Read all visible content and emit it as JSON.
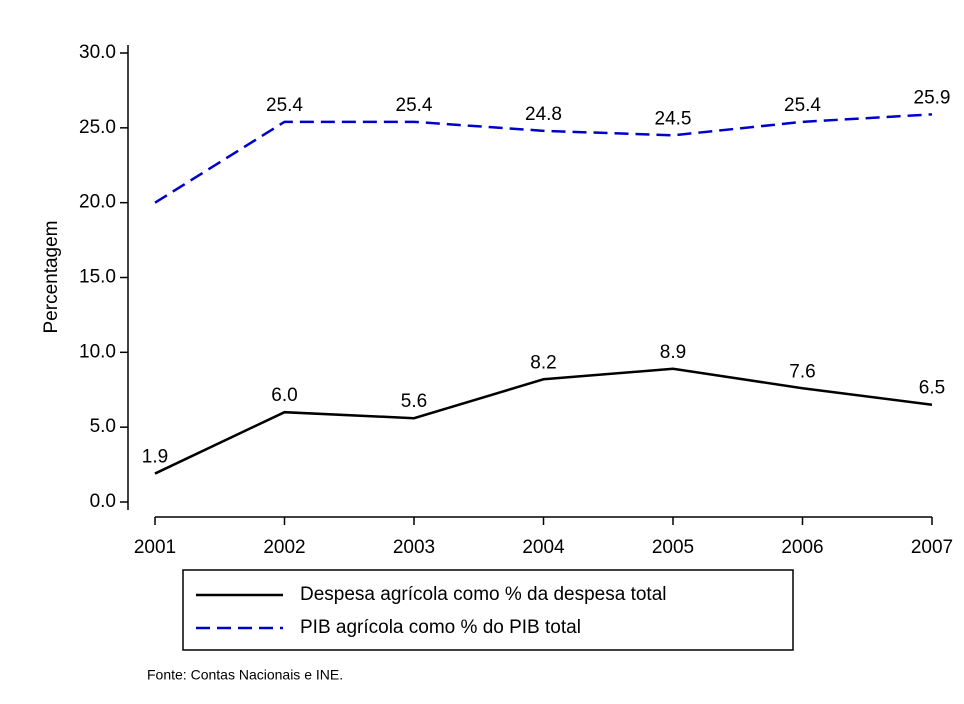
{
  "chart_data": {
    "type": "line",
    "y_label": "Percentagem",
    "note": "Fonte: Contas Nacionais e INE.",
    "x": [
      2001,
      2002,
      2003,
      2004,
      2005,
      2006,
      2007
    ],
    "xlim": [
      2001,
      2007
    ],
    "xticks": [
      2001,
      2002,
      2003,
      2004,
      2005,
      2006,
      2007
    ],
    "ylim": [
      0,
      30
    ],
    "yticks": [
      {
        "value": 0,
        "label": "0.0"
      },
      {
        "value": 5,
        "label": "5.0"
      },
      {
        "value": 10,
        "label": "10.0"
      },
      {
        "value": 15,
        "label": "15.0"
      },
      {
        "value": 20,
        "label": "20.0"
      },
      {
        "value": 25,
        "label": "25.0"
      },
      {
        "value": 30,
        "label": "30.0"
      }
    ],
    "grid": false,
    "legend": "bottom",
    "series": [
      {
        "name": "Despesa agrícola como % da despesa total",
        "color": "#000000",
        "dash": false,
        "values": [
          1.9,
          6,
          5.6,
          8.2,
          8.9,
          7.6,
          6.5
        ],
        "value_labels": [
          "1.9",
          "6.0",
          "5.6",
          "8.2",
          "8.9",
          "7.6",
          "6.5"
        ]
      },
      {
        "name": "PIB agrícola como % do PIB total",
        "color": "#0000cc",
        "dash": true,
        "values": [
          20,
          25.4,
          25.4,
          24.8,
          24.5,
          25.4,
          25.9
        ],
        "value_labels": [
          null,
          "25.4",
          "25.4",
          "24.8",
          "24.5",
          "25.4",
          "25.9"
        ]
      }
    ]
  }
}
